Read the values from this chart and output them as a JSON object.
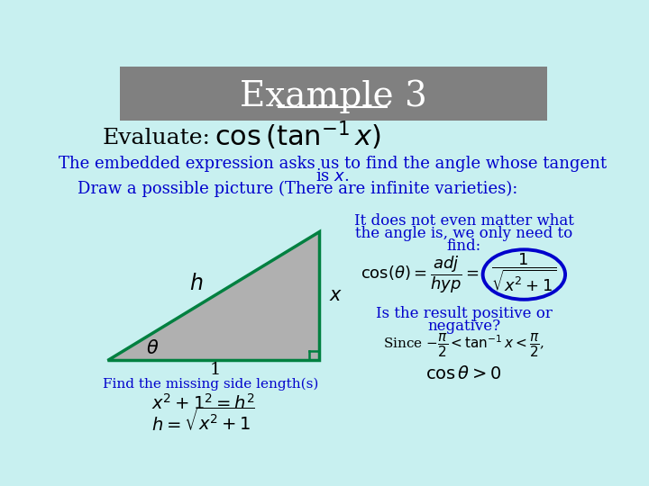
{
  "bg_color": "#c8f0f0",
  "header_bg": "#808080",
  "header_text": "Example 3",
  "header_text_color": "white",
  "evaluate_label": "Evaluate:",
  "evaluate_formula": "$\\cos\\left(\\tan^{-1} x\\right)$",
  "body_text_color": "#0000cc",
  "black_text_color": "black",
  "line1": "The embedded expression asks us to find the angle whose tangent",
  "line2": "is $x$.",
  "line3": "Draw a possible picture (There are infinite varieties):",
  "triangle_fill": "#b0b0b0",
  "triangle_edge": "#008040",
  "label_h": "$h$",
  "label_x": "$x$",
  "label_theta": "$\\theta$",
  "label_1": "1",
  "find_text": "Find the missing side length(s)",
  "eq1": "$x^2 + 1^2 = h^2$",
  "eq2": "$h = \\sqrt{x^2+1}$",
  "right_text1": "It does not even matter what",
  "right_text2": "the angle is, we only need to",
  "right_text3": "find:",
  "circle_color": "#0000cc",
  "positive_text": "Is the result positive or",
  "negative_text": "negative?",
  "since_text": "Since $-\\dfrac{\\pi}{2} < \\tan^{-1}x < \\dfrac{\\pi}{2}$,",
  "cos_pos": "$\\cos\\theta > 0$"
}
